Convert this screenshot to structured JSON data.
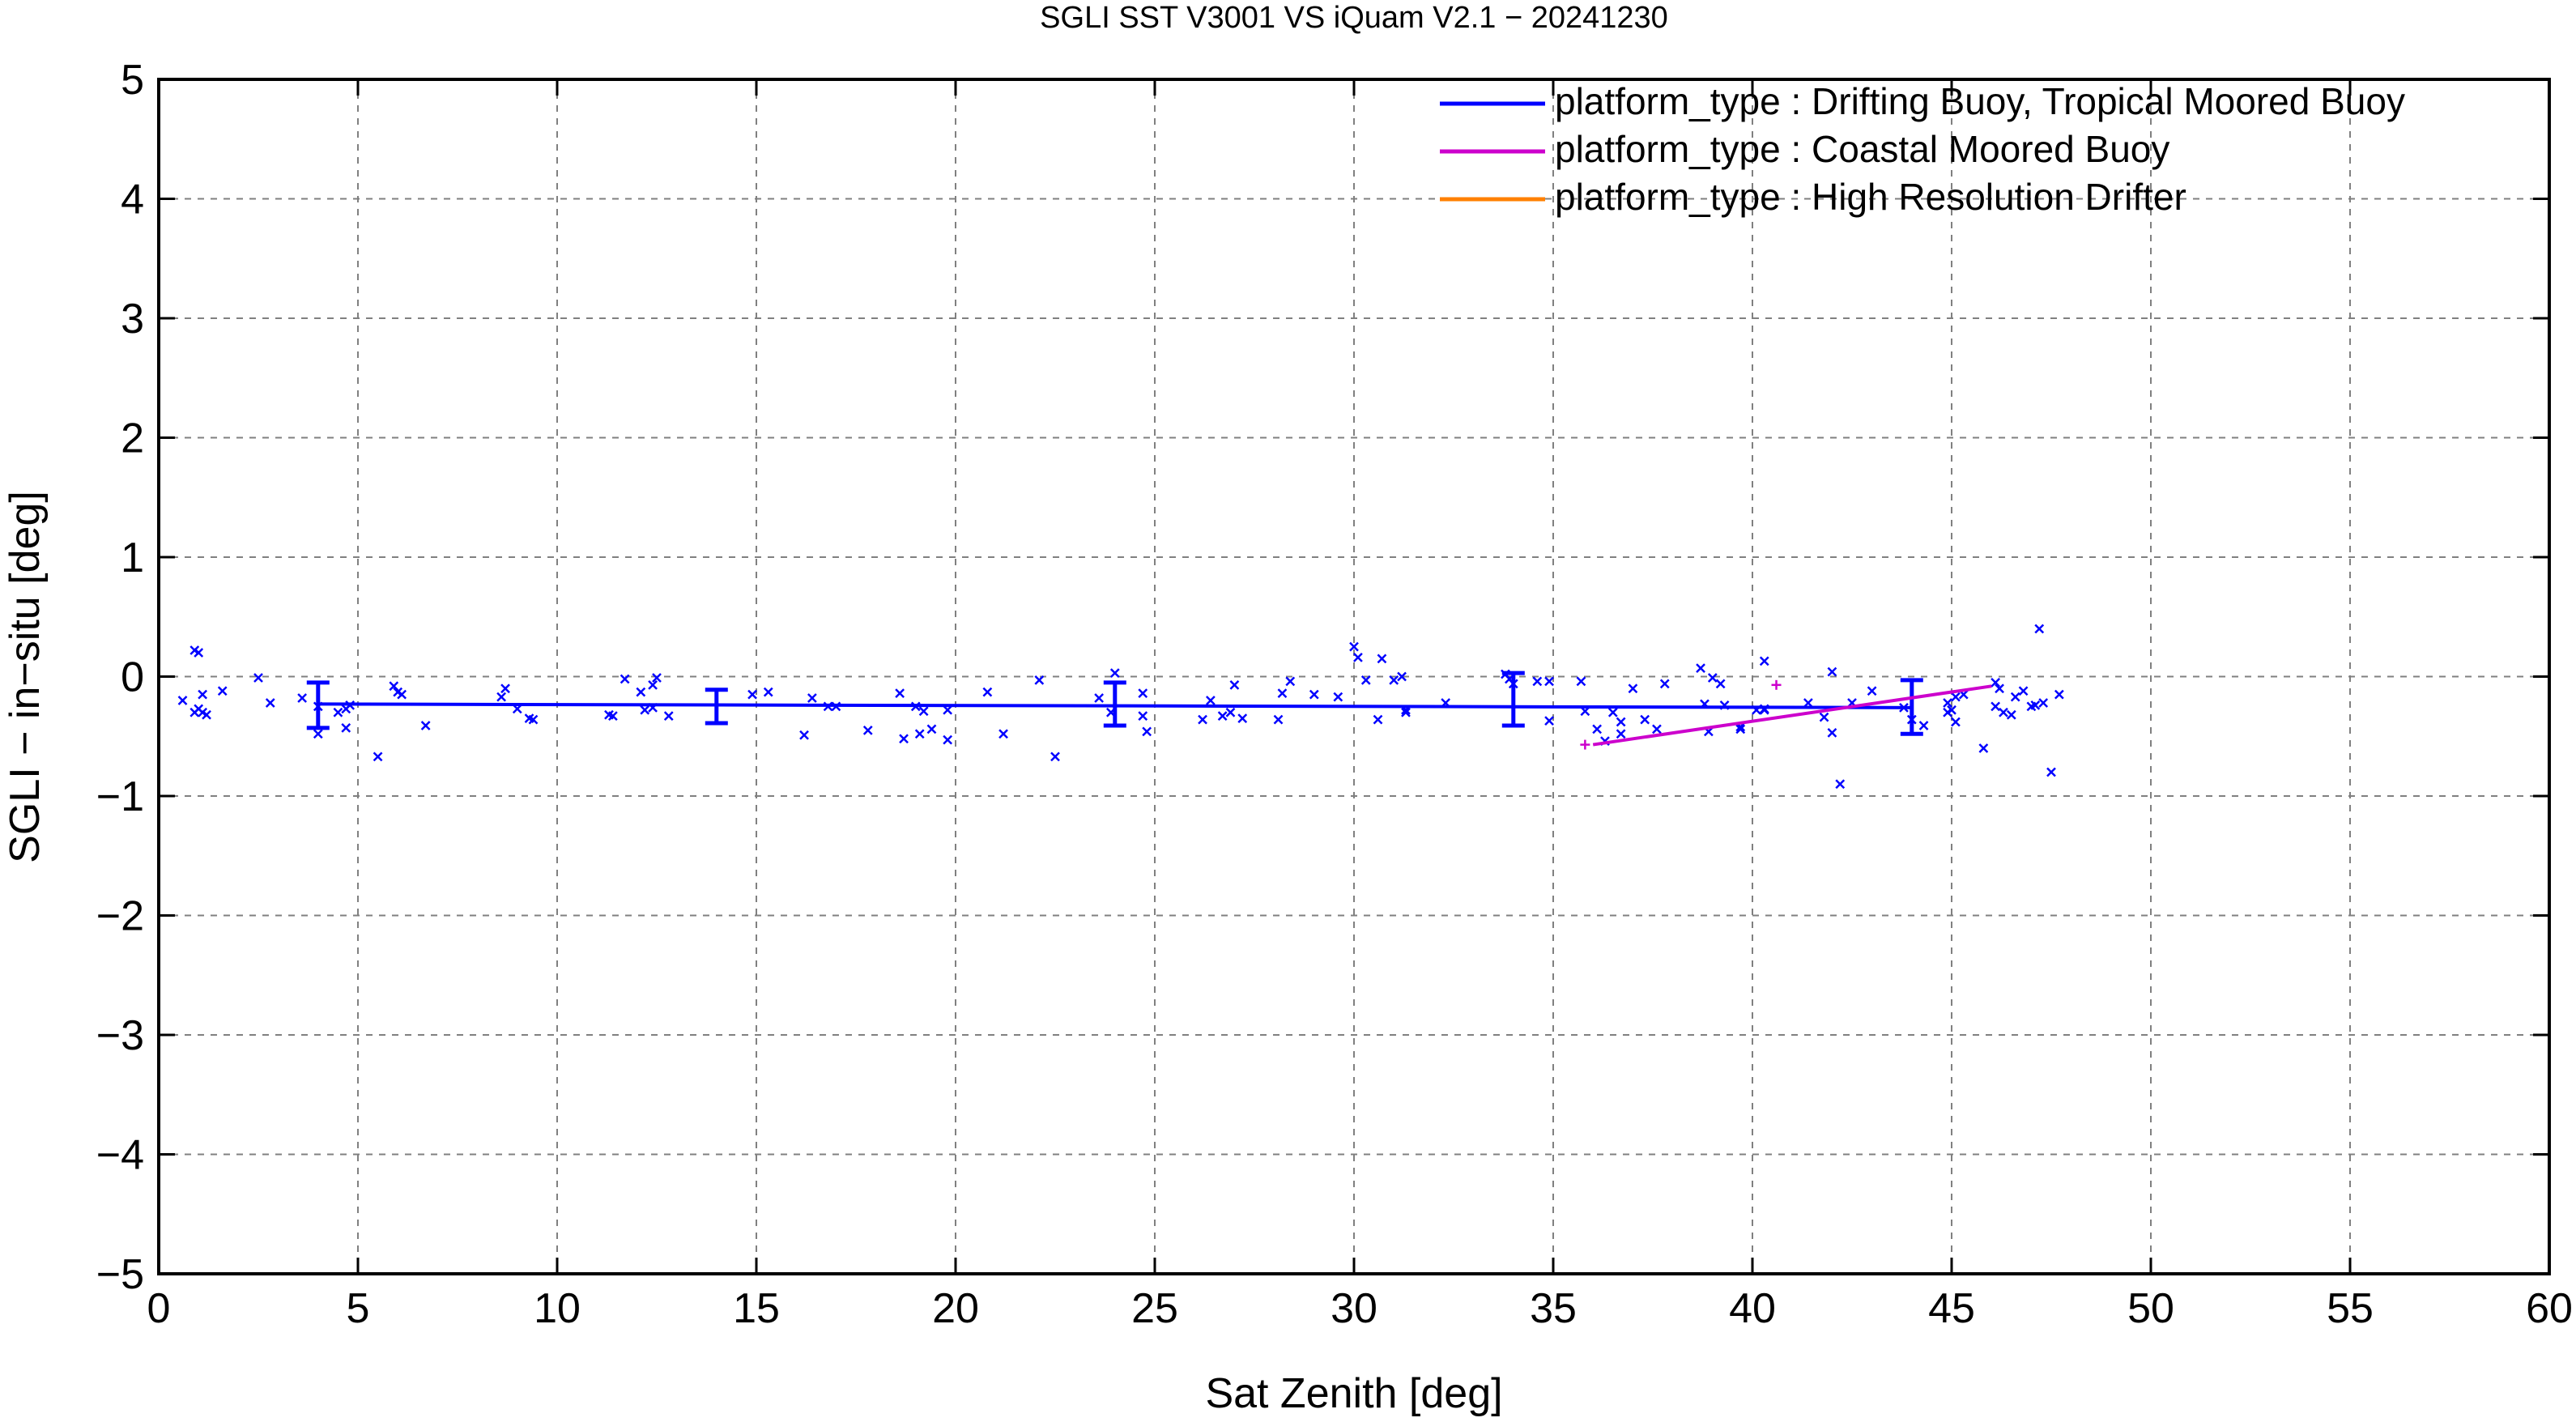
{
  "chart_data": {
    "type": "scatter",
    "title": "SGLI SST V3001 VS iQuam V2.1  − 20241230",
    "xlabel": "Sat Zenith [deg]",
    "ylabel": "SGLI − in−situ [deg]",
    "xlim": [
      0,
      60
    ],
    "ylim": [
      -5,
      5
    ],
    "x_ticks": [
      0,
      5,
      10,
      15,
      20,
      25,
      30,
      35,
      40,
      45,
      50,
      55,
      60
    ],
    "y_ticks": [
      -5,
      -4,
      -3,
      -2,
      -1,
      0,
      1,
      2,
      3,
      4,
      5
    ],
    "x_tick_labels": [
      "0",
      "5",
      "10",
      "15",
      "20",
      "25",
      "30",
      "35",
      "40",
      "45",
      "50",
      "55",
      "60"
    ],
    "y_tick_labels": [
      "−5",
      "−4",
      "−3",
      "−2",
      "−1",
      "0",
      "1",
      "2",
      "3",
      "4",
      "5"
    ],
    "grid": true,
    "legend_position": "top-right",
    "series": [
      {
        "name": "platform_type : Drifting Buoy, Tropical Moored Buoy",
        "color": "#0000ff",
        "marker": "x",
        "points": [
          [
            0.6,
            -0.2
          ],
          [
            0.9,
            0.22
          ],
          [
            1.0,
            0.2
          ],
          [
            0.9,
            -0.3
          ],
          [
            1.0,
            -0.27
          ],
          [
            1.1,
            -0.3
          ],
          [
            1.1,
            -0.15
          ],
          [
            1.2,
            -0.32
          ],
          [
            1.6,
            -0.12
          ],
          [
            2.5,
            -0.01
          ],
          [
            2.8,
            -0.22
          ],
          [
            3.6,
            -0.18
          ],
          [
            4.0,
            -0.25
          ],
          [
            4.0,
            -0.48
          ],
          [
            4.5,
            -0.3
          ],
          [
            4.7,
            -0.27
          ],
          [
            4.7,
            -0.43
          ],
          [
            4.8,
            -0.24
          ],
          [
            5.5,
            -0.67
          ],
          [
            5.9,
            -0.08
          ],
          [
            6.0,
            -0.13
          ],
          [
            6.1,
            -0.15
          ],
          [
            6.7,
            -0.41
          ],
          [
            8.6,
            -0.17
          ],
          [
            8.7,
            -0.1
          ],
          [
            9.0,
            -0.27
          ],
          [
            9.3,
            -0.35
          ],
          [
            9.4,
            -0.36
          ],
          [
            11.3,
            -0.32
          ],
          [
            11.4,
            -0.33
          ],
          [
            11.7,
            -0.02
          ],
          [
            12.1,
            -0.13
          ],
          [
            12.2,
            -0.28
          ],
          [
            12.4,
            -0.07
          ],
          [
            12.4,
            -0.26
          ],
          [
            12.5,
            -0.01
          ],
          [
            12.8,
            -0.33
          ],
          [
            14.9,
            -0.15
          ],
          [
            15.3,
            -0.13
          ],
          [
            16.2,
            -0.49
          ],
          [
            16.4,
            -0.18
          ],
          [
            16.8,
            -0.25
          ],
          [
            17.0,
            -0.25
          ],
          [
            17.8,
            -0.45
          ],
          [
            18.6,
            -0.14
          ],
          [
            18.7,
            -0.52
          ],
          [
            19.0,
            -0.25
          ],
          [
            19.1,
            -0.48
          ],
          [
            19.2,
            -0.29
          ],
          [
            19.4,
            -0.44
          ],
          [
            19.8,
            -0.28
          ],
          [
            19.8,
            -0.53
          ],
          [
            20.8,
            -0.13
          ],
          [
            21.2,
            -0.48
          ],
          [
            22.1,
            -0.03
          ],
          [
            22.5,
            -0.67
          ],
          [
            23.6,
            -0.18
          ],
          [
            23.9,
            -0.3
          ],
          [
            24.0,
            0.03
          ],
          [
            24.7,
            -0.14
          ],
          [
            24.7,
            -0.33
          ],
          [
            24.8,
            -0.46
          ],
          [
            26.2,
            -0.36
          ],
          [
            26.4,
            -0.2
          ],
          [
            26.7,
            -0.33
          ],
          [
            26.9,
            -0.3
          ],
          [
            27.0,
            -0.07
          ],
          [
            27.2,
            -0.35
          ],
          [
            28.1,
            -0.36
          ],
          [
            28.2,
            -0.14
          ],
          [
            28.4,
            -0.04
          ],
          [
            29.0,
            -0.15
          ],
          [
            29.6,
            -0.17
          ],
          [
            30.0,
            0.25
          ],
          [
            30.1,
            0.16
          ],
          [
            30.3,
            -0.03
          ],
          [
            30.6,
            -0.36
          ],
          [
            30.7,
            0.15
          ],
          [
            31.0,
            -0.03
          ],
          [
            31.2,
            0.0
          ],
          [
            31.3,
            -0.28
          ],
          [
            31.3,
            -0.3
          ],
          [
            32.3,
            -0.22
          ],
          [
            33.8,
            0.02
          ],
          [
            33.9,
            -0.02
          ],
          [
            34.0,
            -0.06
          ],
          [
            34.6,
            -0.04
          ],
          [
            34.9,
            -0.04
          ],
          [
            34.9,
            -0.37
          ],
          [
            35.7,
            -0.04
          ],
          [
            35.8,
            -0.29
          ],
          [
            36.1,
            -0.44
          ],
          [
            36.3,
            -0.54
          ],
          [
            36.5,
            -0.3
          ],
          [
            36.7,
            -0.38
          ],
          [
            36.7,
            -0.48
          ],
          [
            37.0,
            -0.1
          ],
          [
            37.3,
            -0.36
          ],
          [
            37.6,
            -0.44
          ],
          [
            37.8,
            -0.06
          ],
          [
            38.7,
            0.07
          ],
          [
            38.8,
            -0.23
          ],
          [
            38.9,
            -0.46
          ],
          [
            39.0,
            -0.01
          ],
          [
            39.2,
            -0.06
          ],
          [
            39.3,
            -0.24
          ],
          [
            39.7,
            -0.44
          ],
          [
            39.7,
            -0.42
          ],
          [
            40.1,
            -0.28
          ],
          [
            40.3,
            -0.28
          ],
          [
            40.3,
            -0.27
          ],
          [
            40.3,
            0.13
          ],
          [
            41.4,
            -0.22
          ],
          [
            41.8,
            -0.34
          ],
          [
            42.0,
            -0.47
          ],
          [
            42.0,
            0.04
          ],
          [
            42.2,
            -0.9
          ],
          [
            42.5,
            -0.22
          ],
          [
            43.0,
            -0.12
          ],
          [
            43.8,
            -0.26
          ],
          [
            44.0,
            -0.36
          ],
          [
            44.3,
            -0.41
          ],
          [
            44.9,
            -0.22
          ],
          [
            44.9,
            -0.3
          ],
          [
            45.0,
            -0.28
          ],
          [
            45.1,
            -0.38
          ],
          [
            45.1,
            -0.17
          ],
          [
            45.3,
            -0.15
          ],
          [
            45.8,
            -0.6
          ],
          [
            46.1,
            -0.05
          ],
          [
            46.1,
            -0.25
          ],
          [
            46.2,
            -0.1
          ],
          [
            46.3,
            -0.3
          ],
          [
            46.5,
            -0.32
          ],
          [
            46.6,
            -0.17
          ],
          [
            46.8,
            -0.12
          ],
          [
            47.0,
            -0.25
          ],
          [
            47.1,
            -0.24
          ],
          [
            47.2,
            0.4
          ],
          [
            47.3,
            -0.22
          ],
          [
            47.5,
            -0.8
          ],
          [
            47.7,
            -0.15
          ]
        ],
        "fit_line": {
          "x": [
            4,
            44
          ],
          "y": [
            -0.23,
            -0.26
          ]
        },
        "errorbars": [
          {
            "x": 4,
            "mean": -0.24,
            "low": -0.43,
            "high": -0.05
          },
          {
            "x": 14,
            "mean": -0.25,
            "low": -0.39,
            "high": -0.11
          },
          {
            "x": 24,
            "mean": -0.23,
            "low": -0.41,
            "high": -0.05
          },
          {
            "x": 34,
            "mean": -0.19,
            "low": -0.41,
            "high": 0.03
          },
          {
            "x": 44,
            "mean": -0.26,
            "low": -0.48,
            "high": -0.03
          }
        ]
      },
      {
        "name": "platform_type : Coastal Moored Buoy",
        "color": "#cc00cc",
        "marker": "+",
        "points": [
          [
            35.8,
            -0.57
          ],
          [
            40.6,
            -0.07
          ]
        ],
        "fit_line": {
          "x": [
            36.0,
            46.0
          ],
          "y": [
            -0.57,
            -0.08
          ]
        }
      },
      {
        "name": "platform_type : High Resolution Drifter",
        "color": "#ff8000",
        "marker": "x",
        "points": [],
        "fit_line": null
      }
    ]
  }
}
